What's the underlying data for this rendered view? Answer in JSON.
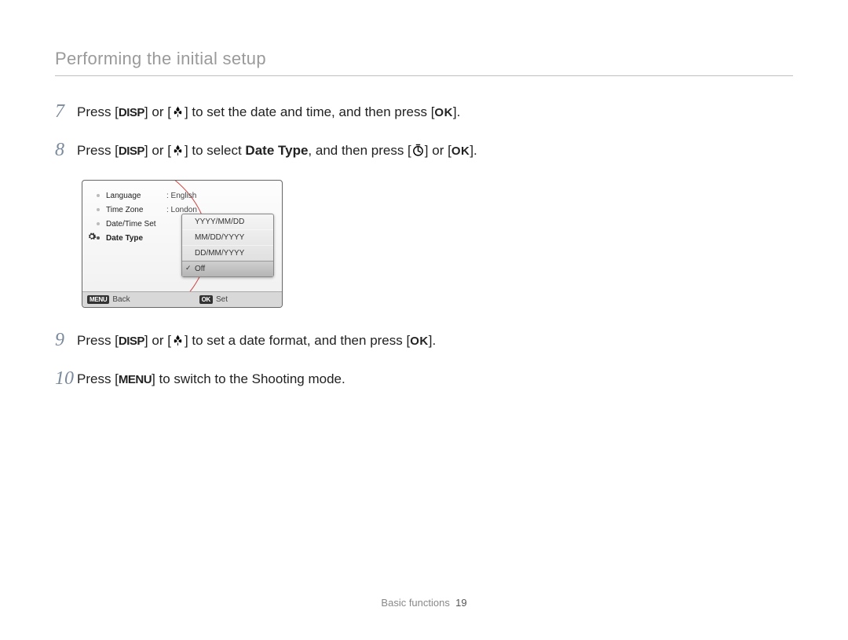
{
  "header": {
    "title": "Performing the initial setup"
  },
  "steps": [
    {
      "num": "7",
      "parts": [
        {
          "t": "text",
          "v": "Press ["
        },
        {
          "t": "btn",
          "v": "DISP"
        },
        {
          "t": "text",
          "v": "] or ["
        },
        {
          "t": "icon",
          "v": "macro"
        },
        {
          "t": "text",
          "v": "] to set the date and time, and then press ["
        },
        {
          "t": "btn",
          "v": "OK"
        },
        {
          "t": "text",
          "v": "]."
        }
      ]
    },
    {
      "num": "8",
      "parts": [
        {
          "t": "text",
          "v": "Press ["
        },
        {
          "t": "btn",
          "v": "DISP"
        },
        {
          "t": "text",
          "v": "] or ["
        },
        {
          "t": "icon",
          "v": "macro"
        },
        {
          "t": "text",
          "v": "] to select "
        },
        {
          "t": "bold",
          "v": "Date Type"
        },
        {
          "t": "text",
          "v": ", and then press ["
        },
        {
          "t": "icon",
          "v": "timer"
        },
        {
          "t": "text",
          "v": "] or ["
        },
        {
          "t": "btn",
          "v": "OK"
        },
        {
          "t": "text",
          "v": "]."
        }
      ]
    },
    {
      "num": "9",
      "parts": [
        {
          "t": "text",
          "v": "Press ["
        },
        {
          "t": "btn",
          "v": "DISP"
        },
        {
          "t": "text",
          "v": "] or ["
        },
        {
          "t": "icon",
          "v": "macro"
        },
        {
          "t": "text",
          "v": "] to set a date format, and then press ["
        },
        {
          "t": "btn",
          "v": "OK"
        },
        {
          "t": "text",
          "v": "]."
        }
      ]
    },
    {
      "num": "10",
      "parts": [
        {
          "t": "text",
          "v": "Press ["
        },
        {
          "t": "btn",
          "v": "MENU"
        },
        {
          "t": "text",
          "v": "] to switch to the Shooting mode."
        }
      ]
    }
  ],
  "screenshot": {
    "menu": [
      {
        "label": "Language",
        "value": ": English",
        "active": false
      },
      {
        "label": "Time Zone",
        "value": ": London",
        "active": false
      },
      {
        "label": "Date/Time Set",
        "value": "",
        "active": false
      },
      {
        "label": "Date Type",
        "value": "",
        "active": true
      }
    ],
    "popup": {
      "options": [
        "YYYY/MM/DD",
        "MM/DD/YYYY",
        "DD/MM/YYYY",
        "Off"
      ],
      "selected_index": 3
    },
    "footer": {
      "back_btn": "MENU",
      "back_label": "Back",
      "set_btn": "OK",
      "set_label": "Set"
    }
  },
  "footer": {
    "section": "Basic functions",
    "page": "19"
  },
  "colors": {
    "header_text": "#9a9a9a",
    "rule": "#bfbfbf",
    "step_num": "#7a8a9c",
    "body": "#222222",
    "arc": "#c44"
  }
}
